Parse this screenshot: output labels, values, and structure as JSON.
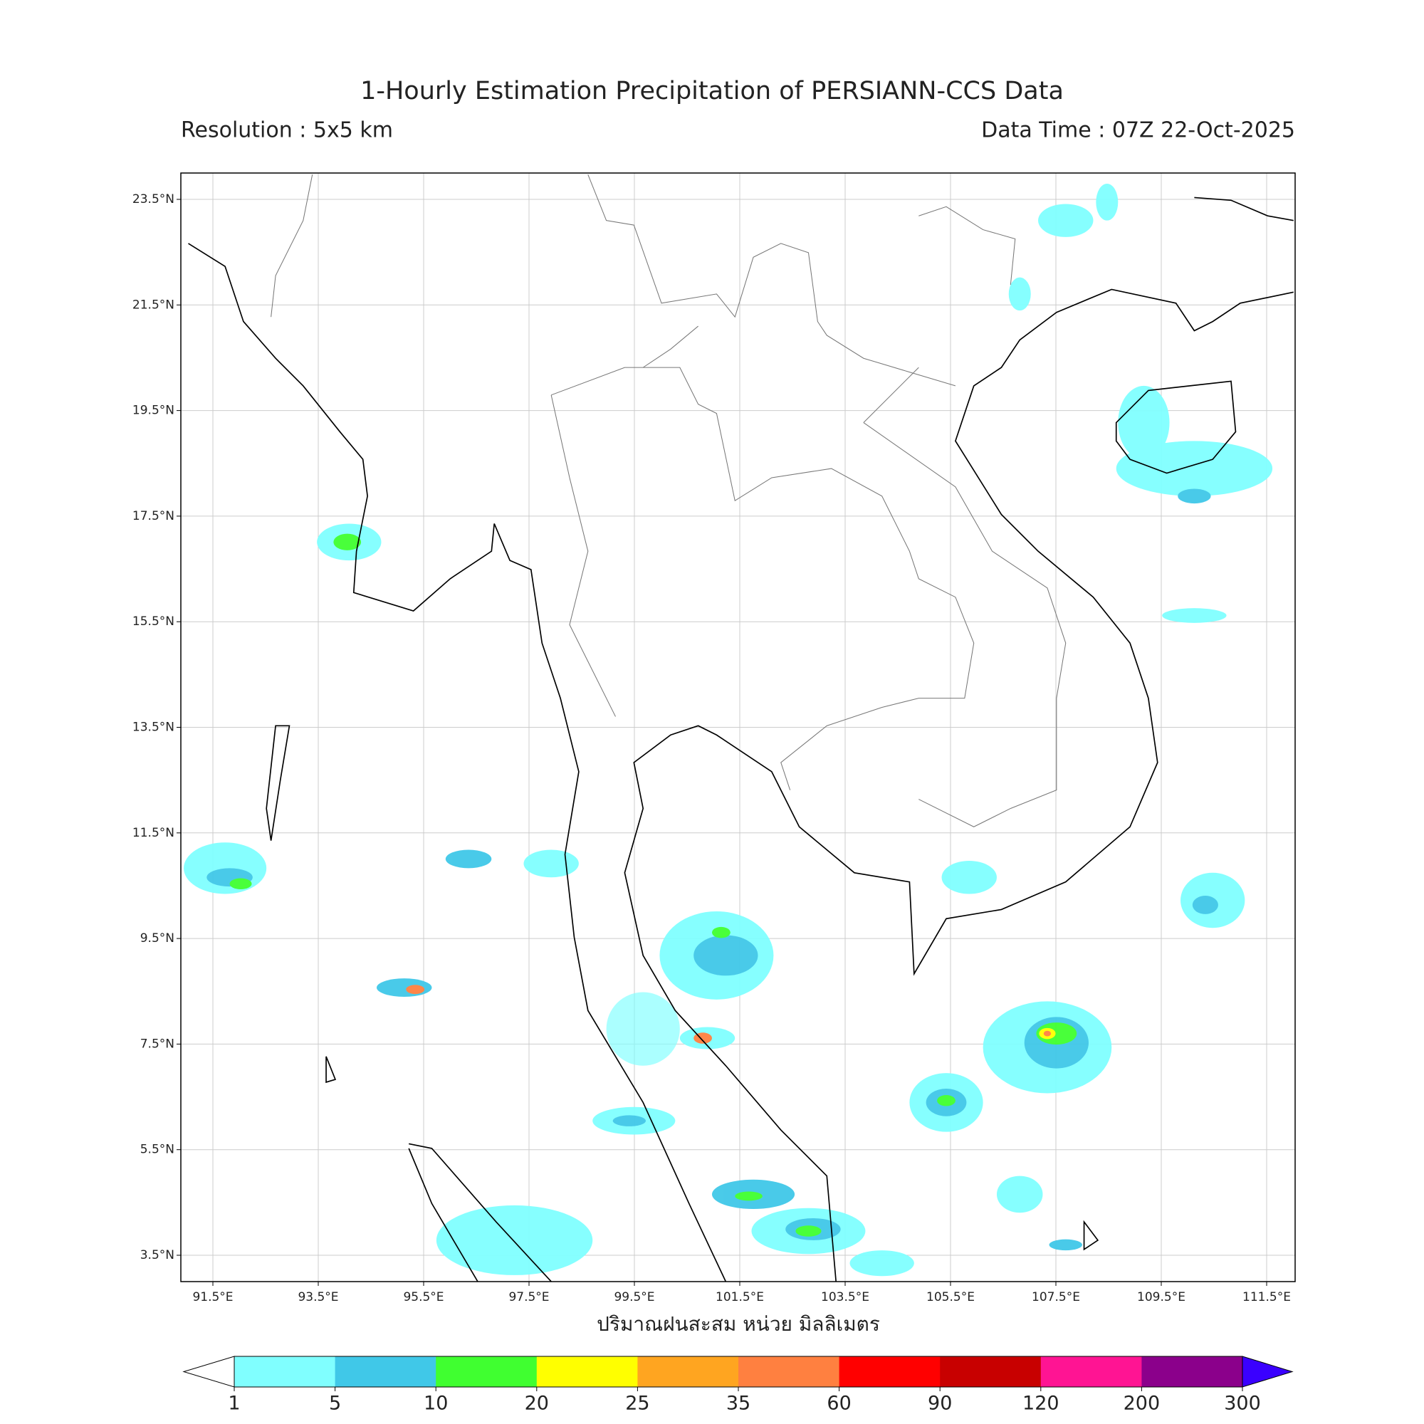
{
  "header": {
    "title": "1-Hourly Estimation Precipitation of PERSIANN-CCS Data",
    "resolution": "Resolution : 5x5 km",
    "data_time": "Data Time : 07Z 22-Oct-2025"
  },
  "map": {
    "lat_ticks": [
      "23.5°N",
      "21.5°N",
      "19.5°N",
      "17.5°N",
      "15.5°N",
      "13.5°N",
      "11.5°N",
      "9.5°N",
      "7.5°N",
      "5.5°N",
      "3.5°N"
    ],
    "lon_ticks": [
      "91.5°E",
      "93.5°E",
      "95.5°E",
      "97.5°E",
      "99.5°E",
      "101.5°E",
      "103.5°E",
      "105.5°E",
      "107.5°E",
      "109.5°E",
      "111.5°E"
    ],
    "x_label": "ปริมาณฝนสะสม หน่วย มิลลิเมตร"
  },
  "colorbar": {
    "levels": [
      1,
      5,
      10,
      20,
      25,
      35,
      60,
      90,
      120,
      200,
      300
    ],
    "colors": [
      "#80ffff",
      "#40c8e8",
      "#40ff30",
      "#ffff00",
      "#ffa520",
      "#ff8040",
      "#ff0000",
      "#c80000",
      "#ff1493",
      "#8b008b"
    ],
    "under_color": "#ffffff",
    "over_color": "#3a00ff"
  }
}
